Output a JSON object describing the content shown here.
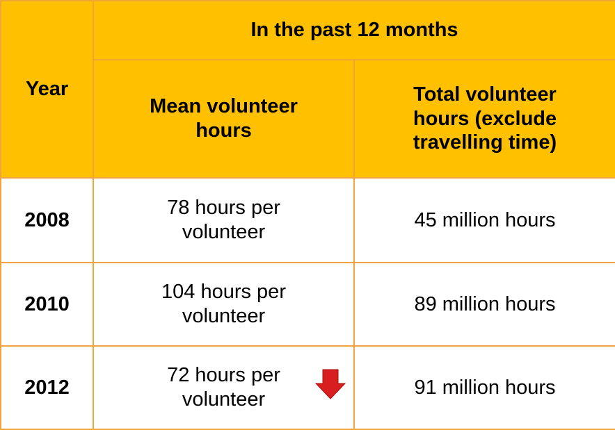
{
  "table": {
    "header": {
      "year": "Year",
      "group": "In the past 12 months",
      "columns": [
        "Mean volunteer hours",
        "Total volunteer hours (exclude travelling time)"
      ]
    },
    "rows": [
      [
        "2008",
        "78 hours per volunteer",
        "45 million hours"
      ],
      [
        "2010",
        "104 hours per volunteer",
        "89 million hours"
      ],
      [
        "2012",
        "72 hours per volunteer",
        "91 million hours"
      ]
    ]
  }
}
